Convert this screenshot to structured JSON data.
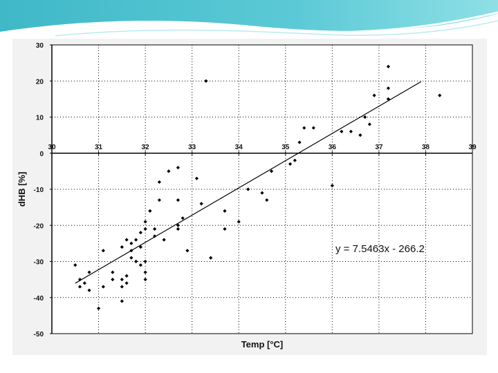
{
  "chart_data": {
    "type": "scatter",
    "xlabel": "Temp [°C]",
    "ylabel": "dHB [%]",
    "xlim": [
      30,
      39
    ],
    "ylim": [
      -50,
      30
    ],
    "x_ticks": [
      "30",
      "31",
      "32",
      "33",
      "34",
      "35",
      "36",
      "37",
      "38",
      "39"
    ],
    "y_ticks": [
      "30",
      "20",
      "10",
      "0",
      "-10",
      "-20",
      "-30",
      "-40",
      "-50"
    ],
    "x_axis_at_y": 0,
    "grid": true,
    "legend": "none",
    "series": [
      {
        "color": "#000000",
        "points": [
          [
            30.5,
            -31
          ],
          [
            30.6,
            -35
          ],
          [
            30.6,
            -37
          ],
          [
            30.7,
            -36
          ],
          [
            30.8,
            -33
          ],
          [
            30.8,
            -38
          ],
          [
            31.0,
            -43
          ],
          [
            31.1,
            -27
          ],
          [
            31.1,
            -37
          ],
          [
            31.3,
            -33
          ],
          [
            31.3,
            -35
          ],
          [
            31.5,
            -26
          ],
          [
            31.5,
            -35
          ],
          [
            31.5,
            -37
          ],
          [
            31.5,
            -41
          ],
          [
            31.6,
            -24
          ],
          [
            31.6,
            -34
          ],
          [
            31.6,
            -36
          ],
          [
            31.7,
            -25
          ],
          [
            31.7,
            -27
          ],
          [
            31.7,
            -29
          ],
          [
            31.8,
            -24
          ],
          [
            31.8,
            -30
          ],
          [
            31.9,
            -22
          ],
          [
            31.9,
            -26
          ],
          [
            31.9,
            -31
          ],
          [
            32.0,
            -19
          ],
          [
            32.0,
            -21
          ],
          [
            32.0,
            -30
          ],
          [
            32.0,
            -33
          ],
          [
            32.0,
            -35
          ],
          [
            32.1,
            -16
          ],
          [
            32.2,
            -21
          ],
          [
            32.2,
            -23
          ],
          [
            32.3,
            -8
          ],
          [
            32.3,
            -13
          ],
          [
            32.4,
            -24
          ],
          [
            32.5,
            -5
          ],
          [
            32.7,
            -4
          ],
          [
            32.7,
            -13
          ],
          [
            32.7,
            -20
          ],
          [
            32.7,
            -21
          ],
          [
            32.8,
            -18
          ],
          [
            32.9,
            -27
          ],
          [
            33.1,
            -7
          ],
          [
            33.2,
            -14
          ],
          [
            33.3,
            20
          ],
          [
            33.4,
            -29
          ],
          [
            33.7,
            -16
          ],
          [
            33.7,
            -21
          ],
          [
            34.0,
            -19
          ],
          [
            34.2,
            -10
          ],
          [
            34.5,
            -11
          ],
          [
            34.6,
            -13
          ],
          [
            34.7,
            -5
          ],
          [
            35.1,
            -3
          ],
          [
            35.2,
            -2
          ],
          [
            35.3,
            3
          ],
          [
            35.4,
            7
          ],
          [
            35.6,
            7
          ],
          [
            36.0,
            -9
          ],
          [
            36.2,
            6
          ],
          [
            36.4,
            6
          ],
          [
            36.6,
            5
          ],
          [
            36.7,
            10
          ],
          [
            36.8,
            8
          ],
          [
            36.9,
            16
          ],
          [
            37.2,
            24
          ],
          [
            37.2,
            18
          ],
          [
            37.2,
            15
          ],
          [
            38.3,
            16
          ]
        ]
      }
    ],
    "trendline": {
      "equation": "y = 7.5463x - 266.2",
      "slope": 7.5463,
      "intercept": -266.2,
      "x_range": [
        30.5,
        37.9
      ]
    }
  }
}
